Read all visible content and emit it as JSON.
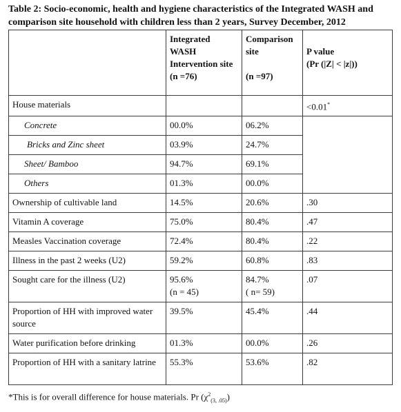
{
  "caption": "Table 2: Socio-economic, health and hygiene characteristics of the Integrated WASH and comparison site household with children less than 2 years, Survey December, 2012",
  "header": {
    "col1": "",
    "col2_line1": "Integrated",
    "col2_line2": "WASH",
    "col2_line3": "Intervention site",
    "col2_line4": "(n =76)",
    "col3_line1": "Comparison",
    "col3_line2": "site",
    "col3_line3": "(n =97)",
    "col4_line1": "P value",
    "col4_line2": "(Pr (|Z| < |z|))"
  },
  "rows": [
    {
      "label": "House materials",
      "a": "",
      "b": "",
      "p": "<0.01",
      "p_sup": "*"
    },
    {
      "label": "Concrete",
      "a": "00.0%",
      "b": "06.2%",
      "p": ""
    },
    {
      "label": "Bricks and Zinc sheet",
      "a": "03.9%",
      "b": "24.7%",
      "p": ""
    },
    {
      "label": "Sheet/ Bamboo",
      "a": "94.7%",
      "b": "69.1%",
      "p": ""
    },
    {
      "label": "Others",
      "a": "01.3%",
      "b": "00.0%",
      "p": ""
    },
    {
      "label": "Ownership of cultivable land",
      "a": "14.5%",
      "b": "20.6%",
      "p": ".30"
    },
    {
      "label": "Vitamin A coverage",
      "a": "75.0%",
      "b": "80.4%",
      "p": ".47"
    },
    {
      "label": "Measles Vaccination coverage",
      "a": "72.4%",
      "b": "80.4%",
      "p": ".22"
    },
    {
      "label": "Illness in the past 2 weeks (U2)",
      "a": "59.2%",
      "b": "60.8%",
      "p": ".83"
    },
    {
      "label": "Sought care for the illness (U2)",
      "a": "95.6%",
      "a2": "(n = 45)",
      "b": "84.7%",
      "b2": "( n= 59)",
      "p": ".07"
    },
    {
      "label": "Proportion of HH with improved water source",
      "a": "39.5%",
      "b": "45.4%",
      "p": ".44"
    },
    {
      "label": "Water purification before drinking",
      "a": "01.3%",
      "b": "00.0%",
      "p": ".26"
    },
    {
      "label": "Proportion of HH with a sanitary latrine",
      "a": "55.3%",
      "b": "53.6%",
      "p": ".82"
    }
  ],
  "footnote": {
    "text": "*This is for overall difference for house materials. Pr (χ",
    "sup": "2",
    "sub": "(3, .05)",
    "end": ")"
  }
}
